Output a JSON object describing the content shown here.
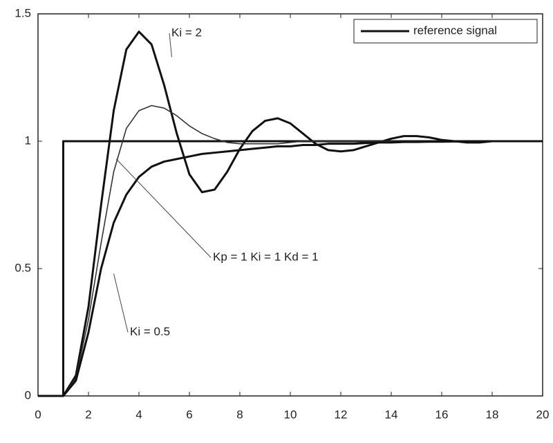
{
  "chart_data": {
    "type": "line",
    "xlim": [
      0,
      20
    ],
    "xticks": [
      0,
      2,
      4,
      6,
      8,
      10,
      12,
      14,
      16,
      18,
      20
    ],
    "ylim": [
      0,
      1.5
    ],
    "yticks": [
      0,
      {
        "value": 0.5,
        "label": "0.5"
      },
      1,
      {
        "value": 1.5,
        "label": "1.5"
      }
    ],
    "legend": "upper right",
    "series": [
      {
        "name": "reference signal",
        "color": "#111111",
        "x": [
          0,
          1,
          1,
          20
        ],
        "values": [
          0,
          0,
          1,
          1
        ]
      },
      {
        "color": "#111111",
        "x": [
          0,
          0.5,
          1,
          1.5,
          2,
          2.5,
          3,
          3.5,
          4,
          4.5,
          5,
          5.5,
          6,
          6.5,
          7,
          7.5,
          8,
          8.5,
          9,
          9.5,
          10,
          10.5,
          11,
          11.5,
          12,
          12.5,
          13,
          13.5,
          14,
          14.5,
          15,
          15.5,
          16,
          16.5,
          17,
          17.5,
          18,
          18.5,
          19,
          19.5,
          20
        ],
        "values": [
          0,
          0,
          0,
          0.08,
          0.35,
          0.75,
          1.12,
          1.36,
          1.43,
          1.38,
          1.22,
          1.03,
          0.87,
          0.8,
          0.81,
          0.88,
          0.97,
          1.04,
          1.08,
          1.09,
          1.07,
          1.03,
          0.99,
          0.965,
          0.96,
          0.965,
          0.98,
          0.995,
          1.01,
          1.02,
          1.02,
          1.015,
          1.005,
          1.0,
          0.995,
          0.995,
          1.0,
          1.0,
          1.0,
          1.0,
          1.0
        ]
      },
      {
        "color": "#333333",
        "x": [
          0,
          0.5,
          1,
          1.5,
          2,
          2.5,
          3,
          3.5,
          4,
          4.5,
          5,
          5.5,
          6,
          6.5,
          7,
          7.5,
          8,
          8.5,
          9,
          9.5,
          10,
          10.5,
          11,
          11.5,
          12,
          12.5,
          13,
          13.5,
          14,
          14.5,
          15,
          15.5,
          16,
          16.5,
          17,
          17.5,
          18,
          18.5,
          19,
          19.5,
          20
        ],
        "values": [
          0,
          0,
          0,
          0.07,
          0.3,
          0.6,
          0.88,
          1.05,
          1.12,
          1.14,
          1.13,
          1.1,
          1.06,
          1.03,
          1.01,
          0.995,
          0.99,
          0.99,
          0.99,
          0.99,
          0.995,
          1,
          1,
          1,
          1,
          1,
          1,
          1,
          1,
          1,
          1,
          1,
          1,
          1,
          1,
          1,
          1,
          1,
          1,
          1,
          1
        ]
      },
      {
        "color": "#111111",
        "x": [
          0,
          0.5,
          1,
          1.5,
          2,
          2.5,
          3,
          3.5,
          4,
          4.5,
          5,
          5.5,
          6,
          6.5,
          7,
          7.5,
          8,
          8.5,
          9,
          9.5,
          10,
          10.5,
          11,
          11.5,
          12,
          12.5,
          13,
          13.5,
          14,
          14.5,
          15,
          15.5,
          16,
          16.5,
          17,
          17.5,
          18,
          18.5,
          19,
          19.5,
          20
        ],
        "values": [
          0,
          0,
          0,
          0.06,
          0.25,
          0.5,
          0.68,
          0.79,
          0.86,
          0.9,
          0.92,
          0.93,
          0.94,
          0.95,
          0.955,
          0.96,
          0.965,
          0.97,
          0.975,
          0.98,
          0.98,
          0.985,
          0.985,
          0.99,
          0.99,
          0.99,
          0.993,
          0.995,
          0.995,
          0.997,
          0.997,
          0.998,
          0.998,
          0.999,
          0.999,
          1,
          1,
          1,
          1,
          1,
          1
        ]
      }
    ],
    "annotations": [
      "Ki = 2",
      "Kp = 1  Ki = 1  Kd = 1",
      "Ki = 0.5"
    ]
  }
}
